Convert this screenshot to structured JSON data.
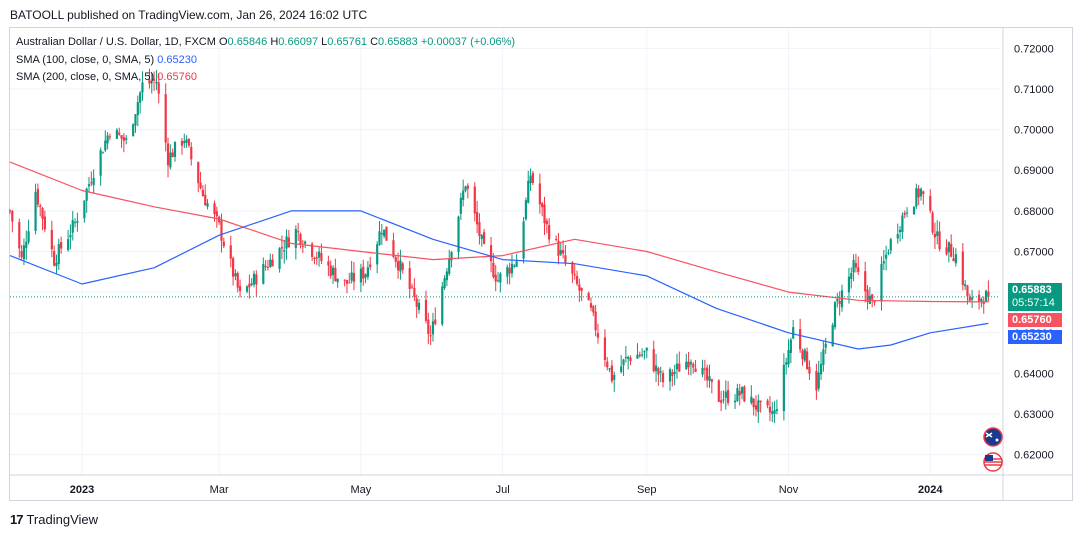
{
  "publisher": {
    "text": "BATOOLL published on TradingView.com, Jan 26, 2024 16:02 UTC"
  },
  "legend": {
    "symbol": "Australian Dollar / U.S. Dollar, 1D, FXCM",
    "open_label": "O",
    "open": "0.65846",
    "high_label": "H",
    "high": "0.66097",
    "low_label": "L",
    "low": "0.65761",
    "close_label": "C",
    "close": "0.65883",
    "change": "+0.00037 (+0.06%)",
    "sma100_label": "SMA (100, close, 0, SMA, 5)",
    "sma100_value": "0.65230",
    "sma200_label": "SMA (200, close, 0, SMA, 5)",
    "sma200_value": "0.65760"
  },
  "tags": {
    "price": "0.65883",
    "countdown": "05:57:14",
    "sma200": "0.65760",
    "sma100": "0.65230"
  },
  "footer": {
    "brand": "TradingView",
    "logo": "17"
  },
  "colors": {
    "up": "#089981",
    "down": "#f23645",
    "sma100": "#2962ff",
    "sma200": "#f7525f",
    "grid": "#f0f3fa",
    "axis_text": "#131722",
    "price_tag": "#089981",
    "sma200_tag": "#f7525f",
    "sma100_tag": "#2962ff"
  },
  "icons": {
    "au_flag": "australia-flag-icon",
    "us_flag": "usa-flag-icon"
  },
  "chart_data": {
    "type": "candlestick",
    "y_axis": {
      "min": 0.615,
      "max": 0.725,
      "ticks": [
        0.72,
        0.71,
        0.7,
        0.69,
        0.68,
        0.67,
        0.66,
        0.65,
        0.64,
        0.63,
        0.62
      ],
      "tick_labels": [
        "0.72000",
        "0.71000",
        "0.70000",
        "0.69000",
        "0.68000",
        "0.67000",
        "0.66000",
        "0.65000",
        "0.64000",
        "0.63000",
        "0.62000"
      ]
    },
    "x_axis": {
      "start": "2022-12-01",
      "end": "2024-01-31",
      "ticks": [
        {
          "date": "2023-01-01",
          "label": "2023",
          "bold": true
        },
        {
          "date": "2023-03-01",
          "label": "Mar",
          "bold": false
        },
        {
          "date": "2023-05-01",
          "label": "May",
          "bold": false
        },
        {
          "date": "2023-07-01",
          "label": "Jul",
          "bold": false
        },
        {
          "date": "2023-09-01",
          "label": "Sep",
          "bold": false
        },
        {
          "date": "2023-11-01",
          "label": "Nov",
          "bold": false
        },
        {
          "date": "2024-01-01",
          "label": "2024",
          "bold": true
        }
      ]
    },
    "last_close": 0.65883,
    "close_path": [
      {
        "date": "2022-12-01",
        "close": 0.68
      },
      {
        "date": "2022-12-06",
        "close": 0.668
      },
      {
        "date": "2022-12-12",
        "close": 0.685
      },
      {
        "date": "2022-12-20",
        "close": 0.668
      },
      {
        "date": "2022-12-29",
        "close": 0.677
      },
      {
        "date": "2023-01-06",
        "close": 0.69
      },
      {
        "date": "2023-01-13",
        "close": 0.7
      },
      {
        "date": "2023-01-20",
        "close": 0.697
      },
      {
        "date": "2023-01-27",
        "close": 0.711
      },
      {
        "date": "2023-02-02",
        "close": 0.712
      },
      {
        "date": "2023-02-07",
        "close": 0.693
      },
      {
        "date": "2023-02-14",
        "close": 0.698
      },
      {
        "date": "2023-02-22",
        "close": 0.684
      },
      {
        "date": "2023-03-01",
        "close": 0.676
      },
      {
        "date": "2023-03-10",
        "close": 0.659
      },
      {
        "date": "2023-03-22",
        "close": 0.667
      },
      {
        "date": "2023-04-03",
        "close": 0.675
      },
      {
        "date": "2023-04-12",
        "close": 0.669
      },
      {
        "date": "2023-04-24",
        "close": 0.662
      },
      {
        "date": "2023-05-03",
        "close": 0.665
      },
      {
        "date": "2023-05-10",
        "close": 0.676
      },
      {
        "date": "2023-05-18",
        "close": 0.666
      },
      {
        "date": "2023-05-31",
        "close": 0.649
      },
      {
        "date": "2023-06-08",
        "close": 0.669
      },
      {
        "date": "2023-06-15",
        "close": 0.687
      },
      {
        "date": "2023-06-23",
        "close": 0.67
      },
      {
        "date": "2023-06-29",
        "close": 0.663
      },
      {
        "date": "2023-07-07",
        "close": 0.668
      },
      {
        "date": "2023-07-13",
        "close": 0.689
      },
      {
        "date": "2023-07-20",
        "close": 0.676
      },
      {
        "date": "2023-07-28",
        "close": 0.667
      },
      {
        "date": "2023-08-08",
        "close": 0.655
      },
      {
        "date": "2023-08-17",
        "close": 0.639
      },
      {
        "date": "2023-08-24",
        "close": 0.644
      },
      {
        "date": "2023-09-01",
        "close": 0.645
      },
      {
        "date": "2023-09-08",
        "close": 0.638
      },
      {
        "date": "2023-09-20",
        "close": 0.644
      },
      {
        "date": "2023-10-02",
        "close": 0.634
      },
      {
        "date": "2023-10-12",
        "close": 0.635
      },
      {
        "date": "2023-10-20",
        "close": 0.631
      },
      {
        "date": "2023-10-26",
        "close": 0.63
      },
      {
        "date": "2023-11-03",
        "close": 0.651
      },
      {
        "date": "2023-11-13",
        "close": 0.637
      },
      {
        "date": "2023-11-21",
        "close": 0.656
      },
      {
        "date": "2023-11-29",
        "close": 0.666
      },
      {
        "date": "2023-12-07",
        "close": 0.657
      },
      {
        "date": "2023-12-14",
        "close": 0.671
      },
      {
        "date": "2023-12-22",
        "close": 0.681
      },
      {
        "date": "2023-12-28",
        "close": 0.685
      },
      {
        "date": "2024-01-04",
        "close": 0.673
      },
      {
        "date": "2024-01-12",
        "close": 0.669
      },
      {
        "date": "2024-01-18",
        "close": 0.657
      },
      {
        "date": "2024-01-24",
        "close": 0.659
      },
      {
        "date": "2024-01-26",
        "close": 0.65883
      }
    ],
    "sma100_path": [
      {
        "date": "2022-12-01",
        "value": 0.669
      },
      {
        "date": "2023-01-01",
        "value": 0.662
      },
      {
        "date": "2023-02-01",
        "value": 0.666
      },
      {
        "date": "2023-03-01",
        "value": 0.674
      },
      {
        "date": "2023-04-01",
        "value": 0.68
      },
      {
        "date": "2023-05-01",
        "value": 0.68
      },
      {
        "date": "2023-06-01",
        "value": 0.673
      },
      {
        "date": "2023-07-01",
        "value": 0.668
      },
      {
        "date": "2023-08-01",
        "value": 0.667
      },
      {
        "date": "2023-09-01",
        "value": 0.664
      },
      {
        "date": "2023-10-01",
        "value": 0.656
      },
      {
        "date": "2023-11-01",
        "value": 0.65
      },
      {
        "date": "2023-12-01",
        "value": 0.646
      },
      {
        "date": "2023-12-15",
        "value": 0.647
      },
      {
        "date": "2024-01-01",
        "value": 0.65
      },
      {
        "date": "2024-01-26",
        "value": 0.6523
      }
    ],
    "sma200_path": [
      {
        "date": "2022-12-01",
        "value": 0.692
      },
      {
        "date": "2023-01-01",
        "value": 0.685
      },
      {
        "date": "2023-02-01",
        "value": 0.681
      },
      {
        "date": "2023-03-01",
        "value": 0.678
      },
      {
        "date": "2023-04-01",
        "value": 0.672
      },
      {
        "date": "2023-05-01",
        "value": 0.67
      },
      {
        "date": "2023-06-01",
        "value": 0.668
      },
      {
        "date": "2023-07-01",
        "value": 0.669
      },
      {
        "date": "2023-08-01",
        "value": 0.673
      },
      {
        "date": "2023-09-01",
        "value": 0.67
      },
      {
        "date": "2023-10-01",
        "value": 0.665
      },
      {
        "date": "2023-11-01",
        "value": 0.66
      },
      {
        "date": "2023-12-01",
        "value": 0.658
      },
      {
        "date": "2024-01-01",
        "value": 0.6577
      },
      {
        "date": "2024-01-26",
        "value": 0.6576
      }
    ]
  }
}
